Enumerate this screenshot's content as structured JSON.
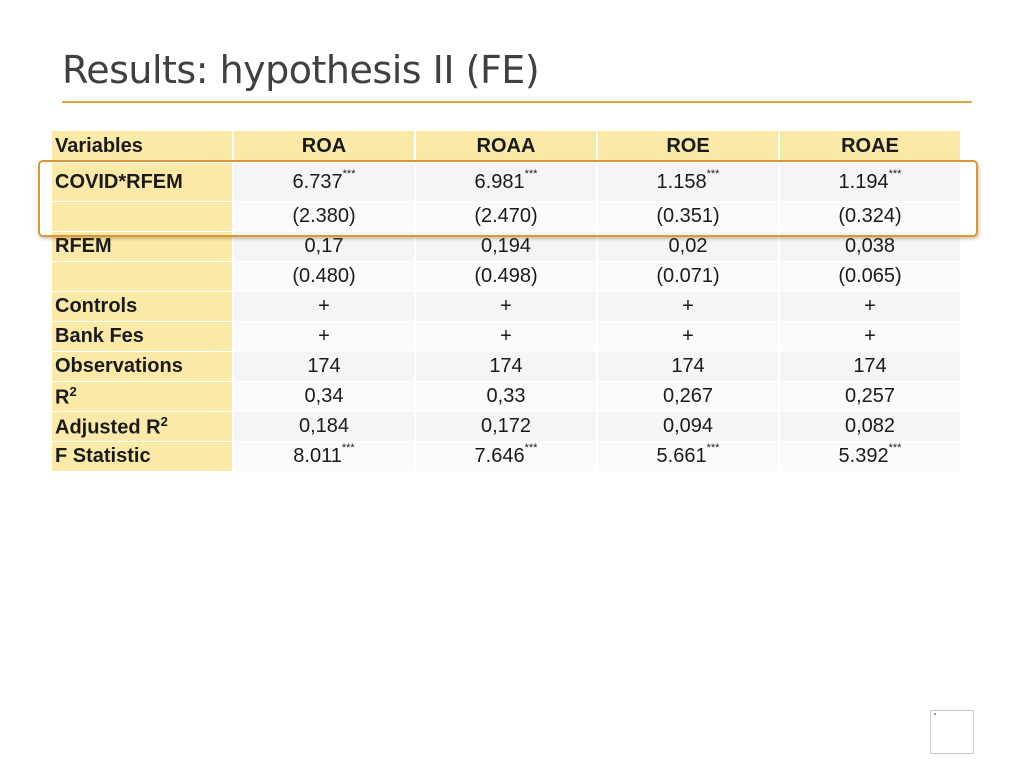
{
  "title": "Results: hypothesis II (FE)",
  "colors": {
    "accent": "#d9a640",
    "header_fill": "#fbe9a8",
    "highlight_border": "#d9973a"
  },
  "table": {
    "variables_label": "Variables",
    "columns": [
      "ROA",
      "ROAA",
      "ROE",
      "ROAE"
    ],
    "rows": [
      {
        "label": "COVID*RFEM",
        "cells": [
          {
            "v": "6.737",
            "s": "***"
          },
          {
            "v": "6.981",
            "s": "***"
          },
          {
            "v": "1.158",
            "s": "***"
          },
          {
            "v": "1.194",
            "s": "***"
          }
        ]
      },
      {
        "label": "",
        "cells": [
          {
            "v": "(2.380)"
          },
          {
            "v": "(2.470)"
          },
          {
            "v": "(0.351)"
          },
          {
            "v": "(0.324)"
          }
        ]
      },
      {
        "label": "RFEM",
        "cells": [
          {
            "v": "0,17"
          },
          {
            "v": "0,194"
          },
          {
            "v": "0,02"
          },
          {
            "v": "0,038"
          }
        ]
      },
      {
        "label": "",
        "cells": [
          {
            "v": "(0.480)"
          },
          {
            "v": "(0.498)"
          },
          {
            "v": "(0.071)"
          },
          {
            "v": "(0.065)"
          }
        ]
      },
      {
        "label": "Controls",
        "cells": [
          {
            "v": "+"
          },
          {
            "v": "+"
          },
          {
            "v": "+"
          },
          {
            "v": "+"
          }
        ]
      },
      {
        "label": "Bank Fes",
        "cells": [
          {
            "v": "+"
          },
          {
            "v": "+"
          },
          {
            "v": "+"
          },
          {
            "v": "+"
          }
        ]
      },
      {
        "label": "Observations",
        "cells": [
          {
            "v": "174"
          },
          {
            "v": "174"
          },
          {
            "v": "174"
          },
          {
            "v": "174"
          }
        ]
      },
      {
        "label": "R",
        "sup": "2",
        "cells": [
          {
            "v": "0,34"
          },
          {
            "v": "0,33"
          },
          {
            "v": "0,267"
          },
          {
            "v": "0,257"
          }
        ]
      },
      {
        "label": "Adjusted R",
        "sup": "2",
        "cells": [
          {
            "v": "0,184"
          },
          {
            "v": "0,172"
          },
          {
            "v": "0,094"
          },
          {
            "v": "0,082"
          }
        ]
      },
      {
        "label": "F Statistic",
        "cells": [
          {
            "v": "8.011",
            "s": "***"
          },
          {
            "v": "7.646",
            "s": "***"
          },
          {
            "v": "5.661",
            "s": "***"
          },
          {
            "v": "5.392",
            "s": "***"
          }
        ]
      }
    ]
  }
}
